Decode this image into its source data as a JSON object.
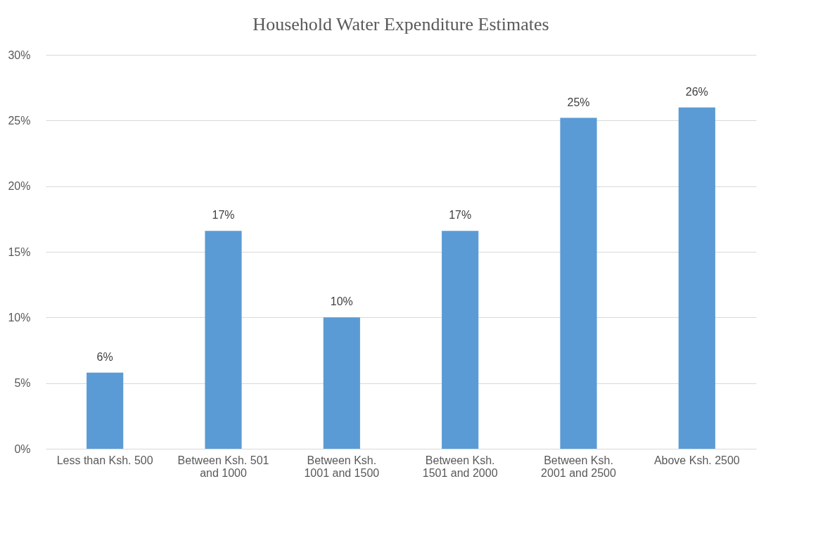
{
  "chart_data": {
    "type": "bar",
    "title": "Household Water Expenditure Estimates",
    "categories": [
      "Less than Ksh. 500",
      "Between Ksh. 501 and 1000",
      "Between Ksh. 1001 and 1500",
      "Between Ksh. 1501 and 2000",
      "Between Ksh. 2001 and 2500",
      "Above Ksh. 2500"
    ],
    "values": [
      5.8,
      16.6,
      10.0,
      16.6,
      25.2,
      26.0
    ],
    "value_labels": [
      "6%",
      "17%",
      "10%",
      "17%",
      "25%",
      "26%"
    ],
    "color": "#5b9bd5",
    "ylim": [
      0,
      30
    ],
    "yticks": [
      {
        "value": 0,
        "label": "0%"
      },
      {
        "value": 5,
        "label": "5%"
      },
      {
        "value": 10,
        "label": "10%"
      },
      {
        "value": 15,
        "label": "15%"
      },
      {
        "value": 20,
        "label": "20%"
      },
      {
        "value": 25,
        "label": "25%"
      },
      {
        "value": 30,
        "label": "30%"
      }
    ],
    "grid": "y"
  }
}
